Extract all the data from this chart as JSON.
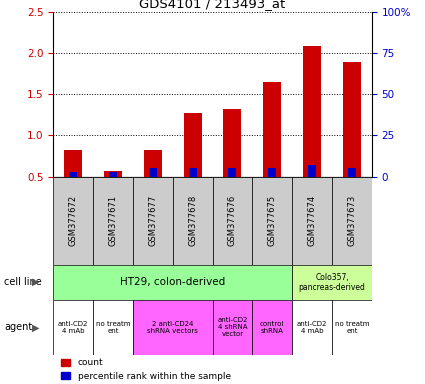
{
  "title": "GDS4101 / 213493_at",
  "samples": [
    "GSM377672",
    "GSM377671",
    "GSM377677",
    "GSM377678",
    "GSM377676",
    "GSM377675",
    "GSM377674",
    "GSM377673"
  ],
  "count_values": [
    0.82,
    0.57,
    0.82,
    1.27,
    1.32,
    1.65,
    2.08,
    1.89
  ],
  "percentile_values": [
    3,
    3,
    5,
    5,
    5,
    5,
    7,
    5
  ],
  "ylim_left": [
    0.5,
    2.5
  ],
  "ylim_right": [
    0,
    100
  ],
  "yticks_left": [
    0.5,
    1.0,
    1.5,
    2.0,
    2.5
  ],
  "yticks_right": [
    0,
    25,
    50,
    75,
    100
  ],
  "ytick_labels_right": [
    "0",
    "25",
    "50",
    "75",
    "100%"
  ],
  "bar_color_red": "#cc0000",
  "bar_color_blue": "#0000cc",
  "sample_box_color": "#cccccc",
  "bg_color": "#ffffff",
  "cell_line_ht29_color": "#99ff99",
  "cell_line_colo_color": "#ccff99",
  "agent_white": "#ffffff",
  "agent_pink": "#ff66ff",
  "left_label_color": "#555555"
}
